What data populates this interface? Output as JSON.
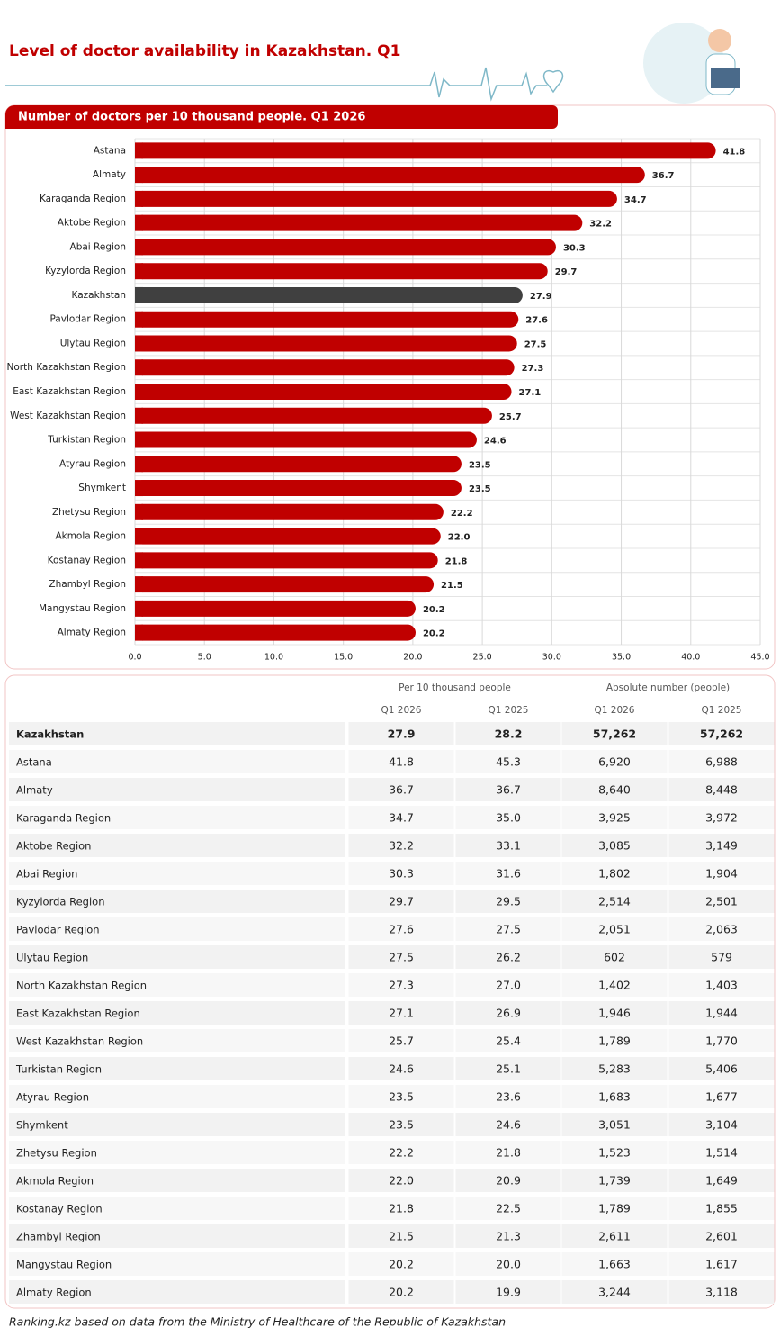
{
  "title": "Level of doctor availability in Kazakhstan. Q1",
  "chart_data": {
    "type": "bar",
    "orientation": "horizontal",
    "subtitle": "Number of doctors per 10 thousand people. Q1 2026",
    "categories": [
      "Astana",
      "Almaty",
      "Karaganda Region",
      "Aktobe Region",
      "Abai Region",
      "Kyzylorda Region",
      "Kazakhstan",
      "Pavlodar Region",
      "Ulytau Region",
      "North Kazakhstan Region",
      "East Kazakhstan Region",
      "West Kazakhstan Region",
      "Turkistan Region",
      "Atyrau Region",
      "Shymkent",
      "Zhetysu Region",
      "Akmola Region",
      "Kostanay Region",
      "Zhambyl Region",
      "Mangystau Region",
      "Almaty Region"
    ],
    "values": [
      41.8,
      36.7,
      34.7,
      32.2,
      30.3,
      29.7,
      27.9,
      27.6,
      27.5,
      27.3,
      27.1,
      25.7,
      24.6,
      23.5,
      23.5,
      22.2,
      22.0,
      21.8,
      21.5,
      20.2,
      20.2
    ],
    "value_labels": [
      "41.8",
      "36.7",
      "34.7",
      "32.2",
      "30.3",
      "29.7",
      "27.9",
      "27.6",
      "27.5",
      "27.3",
      "27.1",
      "25.7",
      "24.6",
      "23.5",
      "23.5",
      "22.2",
      "22.0",
      "21.8",
      "21.5",
      "20.2",
      "20.2"
    ],
    "colors": [
      "#c00000",
      "#c00000",
      "#c00000",
      "#c00000",
      "#c00000",
      "#c00000",
      "#404040",
      "#c00000",
      "#c00000",
      "#c00000",
      "#c00000",
      "#c00000",
      "#c00000",
      "#c00000",
      "#c00000",
      "#c00000",
      "#c00000",
      "#c00000",
      "#c00000",
      "#c00000",
      "#c00000"
    ],
    "xlim": [
      0,
      45
    ],
    "xticks": [
      {
        "value": 0,
        "label": "0.0"
      },
      {
        "value": 5,
        "label": "5.0"
      },
      {
        "value": 10,
        "label": "10.0"
      },
      {
        "value": 15,
        "label": "15.0"
      },
      {
        "value": 20,
        "label": "20.0"
      },
      {
        "value": 25,
        "label": "25.0"
      },
      {
        "value": 30,
        "label": "30.0"
      },
      {
        "value": 35,
        "label": "35.0"
      },
      {
        "value": 40,
        "label": "40.0"
      },
      {
        "value": 45,
        "label": "45.0"
      }
    ],
    "grid": true
  },
  "table": {
    "groups": [
      "Per 10 thousand people",
      "Absolute number (people)"
    ],
    "columns": [
      "Q1 2026",
      "Q1 2025",
      "Q1 2026",
      "Q1 2025"
    ],
    "rows": [
      [
        "Kazakhstan",
        "27.9",
        "28.2",
        "57,262",
        "57,262"
      ],
      [
        "Astana",
        "41.8",
        "45.3",
        "6,920",
        "6,988"
      ],
      [
        "Almaty",
        "36.7",
        "36.7",
        "8,640",
        "8,448"
      ],
      [
        "Karaganda Region",
        "34.7",
        "35.0",
        "3,925",
        "3,972"
      ],
      [
        "Aktobe Region",
        "32.2",
        "33.1",
        "3,085",
        "3,149"
      ],
      [
        "Abai Region",
        "30.3",
        "31.6",
        "1,802",
        "1,904"
      ],
      [
        "Kyzylorda Region",
        "29.7",
        "29.5",
        "2,514",
        "2,501"
      ],
      [
        "Pavlodar Region",
        "27.6",
        "27.5",
        "2,051",
        "2,063"
      ],
      [
        "Ulytau Region",
        "27.5",
        "26.2",
        "602",
        "579"
      ],
      [
        "North Kazakhstan Region",
        "27.3",
        "27.0",
        "1,402",
        "1,403"
      ],
      [
        "East Kazakhstan Region",
        "27.1",
        "26.9",
        "1,946",
        "1,944"
      ],
      [
        "West Kazakhstan Region",
        "25.7",
        "25.4",
        "1,789",
        "1,770"
      ],
      [
        "Turkistan Region",
        "24.6",
        "25.1",
        "5,283",
        "5,406"
      ],
      [
        "Atyrau Region",
        "23.5",
        "23.6",
        "1,683",
        "1,677"
      ],
      [
        "Shymkent",
        "23.5",
        "24.6",
        "3,051",
        "3,104"
      ],
      [
        "Zhetysu Region",
        "22.2",
        "21.8",
        "1,523",
        "1,514"
      ],
      [
        "Akmola Region",
        "22.0",
        "20.9",
        "1,739",
        "1,649"
      ],
      [
        "Kostanay Region",
        "21.8",
        "22.5",
        "1,789",
        "1,855"
      ],
      [
        "Zhambyl Region",
        "21.5",
        "21.3",
        "2,611",
        "2,601"
      ],
      [
        "Mangystau Region",
        "20.2",
        "20.0",
        "1,663",
        "1,617"
      ],
      [
        "Almaty Region",
        "20.2",
        "19.9",
        "3,244",
        "3,118"
      ]
    ]
  },
  "source": "Ranking.kz based on data from the Ministry of Healthcare of the Republic of Kazakhstan"
}
